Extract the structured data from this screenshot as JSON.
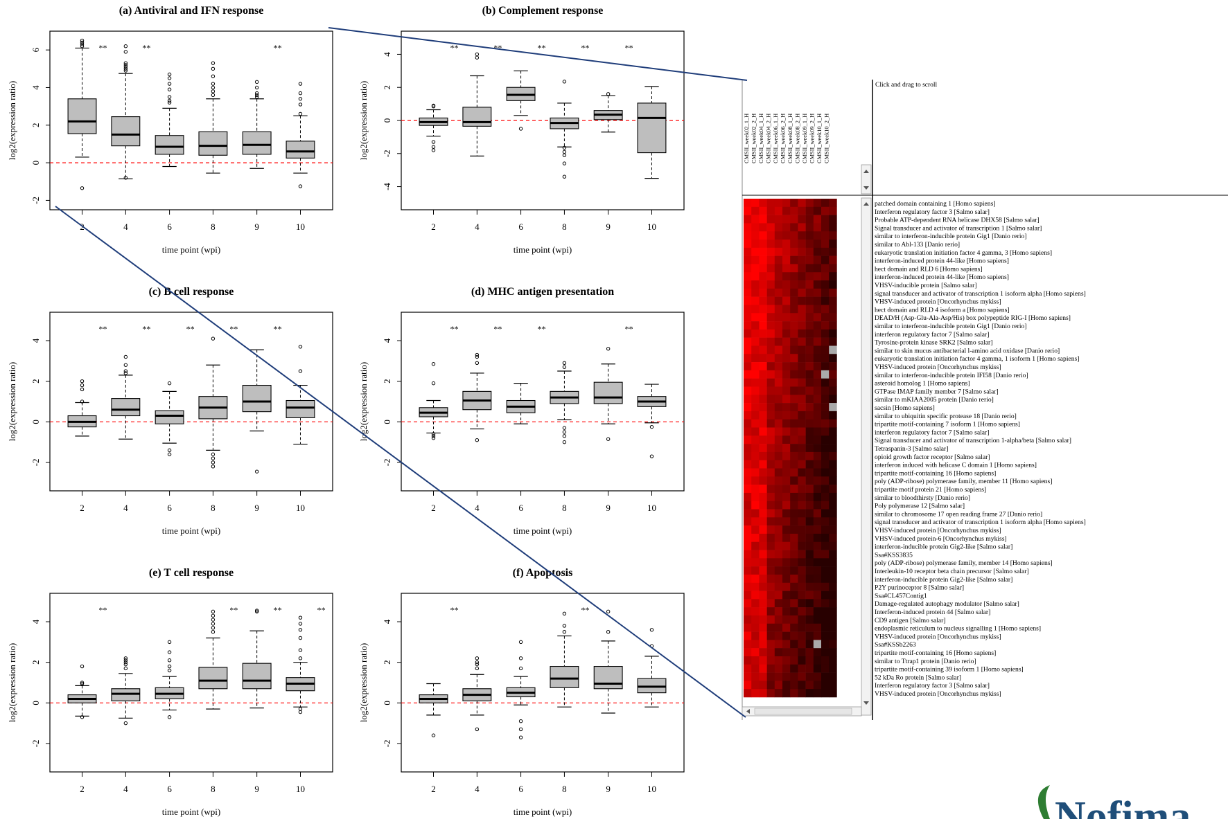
{
  "chart_data": [
    {
      "type": "boxplot",
      "title": "(a) Antiviral and IFN response",
      "xlabel": "time point (wpi)",
      "ylabel": "log2(expression ratio)",
      "categories": [
        "2",
        "4",
        "6",
        "8",
        "9",
        "10"
      ],
      "ylim": [
        -2.5,
        7
      ],
      "yticks": [
        -2,
        0,
        2,
        4,
        6
      ],
      "significance": [
        "**",
        "**",
        "",
        "",
        "**",
        ""
      ],
      "boxes": [
        {
          "min": 0.3,
          "q1": 1.55,
          "median": 2.2,
          "q3": 3.4,
          "max": 6.1,
          "outliers": [
            6.2,
            6.3,
            6.4,
            6.5,
            -1.35
          ]
        },
        {
          "min": -0.85,
          "q1": 0.9,
          "median": 1.5,
          "q3": 2.45,
          "max": 4.75,
          "outliers": [
            4.9,
            5.0,
            5.1,
            5.2,
            5.3,
            5.9,
            6.2,
            -0.8
          ]
        },
        {
          "min": -0.2,
          "q1": 0.45,
          "median": 0.85,
          "q3": 1.45,
          "max": 2.9,
          "outliers": [
            3.2,
            3.3,
            3.5,
            3.9,
            4.2,
            4.5,
            4.7
          ]
        },
        {
          "min": -0.55,
          "q1": 0.4,
          "median": 0.9,
          "q3": 1.65,
          "max": 3.4,
          "outliers": [
            3.6,
            3.8,
            4.0,
            4.2,
            4.6,
            5.0,
            5.3
          ]
        },
        {
          "min": -0.3,
          "q1": 0.45,
          "median": 0.95,
          "q3": 1.65,
          "max": 3.4,
          "outliers": [
            3.5,
            3.6,
            3.7,
            4.0,
            4.3
          ]
        },
        {
          "min": -0.55,
          "q1": 0.25,
          "median": 0.6,
          "q3": 1.15,
          "max": 2.5,
          "outliers": [
            2.6,
            3.1,
            3.4,
            3.7,
            4.2,
            -1.25
          ]
        }
      ]
    },
    {
      "type": "boxplot",
      "title": "(b) Complement response",
      "xlabel": "time point (wpi)",
      "ylabel": "log2(expression ratio)",
      "categories": [
        "2",
        "4",
        "6",
        "8",
        "9",
        "10"
      ],
      "ylim": [
        -5.4,
        5.4
      ],
      "yticks": [
        -4,
        -2,
        0,
        2,
        4
      ],
      "significance": [
        "**",
        "**",
        "**",
        "**",
        "**",
        ""
      ],
      "boxes": [
        {
          "min": -0.95,
          "q1": -0.3,
          "median": -0.1,
          "q3": 0.15,
          "max": 0.65,
          "outliers": [
            0.85,
            0.9,
            -1.3,
            -1.6,
            -1.8
          ]
        },
        {
          "min": -2.15,
          "q1": -0.35,
          "median": -0.1,
          "q3": 0.8,
          "max": 2.7,
          "outliers": [
            3.8,
            4.0
          ]
        },
        {
          "min": 0.3,
          "q1": 1.2,
          "median": 1.55,
          "q3": 2.0,
          "max": 3.0,
          "outliers": [
            -0.5
          ]
        },
        {
          "min": -1.6,
          "q1": -0.5,
          "median": -0.15,
          "q3": 0.15,
          "max": 1.05,
          "outliers": [
            2.35,
            -1.65,
            -1.9,
            -2.1,
            -2.6,
            -3.4
          ]
        },
        {
          "min": -0.7,
          "q1": 0.05,
          "median": 0.35,
          "q3": 0.6,
          "max": 1.5,
          "outliers": [
            1.6
          ]
        },
        {
          "min": -3.5,
          "q1": -1.95,
          "median": 0.15,
          "q3": 1.05,
          "max": 2.05,
          "outliers": []
        }
      ]
    },
    {
      "type": "boxplot",
      "title": "(c) B cell response",
      "xlabel": "time point (wpi)",
      "ylabel": "log2(expression ratio)",
      "categories": [
        "2",
        "4",
        "6",
        "8",
        "9",
        "10"
      ],
      "ylim": [
        -3.4,
        5.4
      ],
      "yticks": [
        -2,
        0,
        2,
        4
      ],
      "significance": [
        "**",
        "**",
        "**",
        "**",
        "**",
        ""
      ],
      "boxes": [
        {
          "min": -0.7,
          "q1": -0.25,
          "median": 0.0,
          "q3": 0.3,
          "max": 0.95,
          "outliers": [
            1.0,
            1.6,
            1.8,
            2.0
          ]
        },
        {
          "min": -0.85,
          "q1": 0.3,
          "median": 0.6,
          "q3": 1.15,
          "max": 2.3,
          "outliers": [
            2.4,
            2.5,
            2.8,
            3.2
          ]
        },
        {
          "min": -1.05,
          "q1": -0.1,
          "median": 0.3,
          "q3": 0.55,
          "max": 1.5,
          "outliers": [
            1.9,
            -1.4,
            -1.6
          ]
        },
        {
          "min": -1.4,
          "q1": 0.15,
          "median": 0.7,
          "q3": 1.25,
          "max": 2.8,
          "outliers": [
            4.1,
            -1.6,
            -1.8,
            -2.0,
            -2.2
          ]
        },
        {
          "min": -0.45,
          "q1": 0.5,
          "median": 1.0,
          "q3": 1.8,
          "max": 3.55,
          "outliers": [
            -2.45
          ]
        },
        {
          "min": -1.1,
          "q1": 0.2,
          "median": 0.7,
          "q3": 1.05,
          "max": 1.8,
          "outliers": [
            2.5,
            3.7
          ]
        }
      ]
    },
    {
      "type": "boxplot",
      "title": "(d) MHC antigen presentation",
      "xlabel": "time point (wpi)",
      "ylabel": "log2(expression ratio)",
      "categories": [
        "2",
        "4",
        "6",
        "8",
        "9",
        "10"
      ],
      "ylim": [
        -3.4,
        5.4
      ],
      "yticks": [
        -2,
        0,
        2,
        4
      ],
      "significance": [
        "**",
        "**",
        "**",
        "",
        "**",
        ""
      ],
      "boxes": [
        {
          "min": -0.55,
          "q1": 0.25,
          "median": 0.45,
          "q3": 0.7,
          "max": 1.05,
          "outliers": [
            1.9,
            2.85,
            -0.6,
            -0.7,
            -0.8
          ]
        },
        {
          "min": -0.35,
          "q1": 0.6,
          "median": 1.05,
          "q3": 1.5,
          "max": 2.4,
          "outliers": [
            2.9,
            3.2,
            3.3,
            -0.9
          ]
        },
        {
          "min": -0.1,
          "q1": 0.45,
          "median": 0.75,
          "q3": 1.05,
          "max": 1.9,
          "outliers": []
        },
        {
          "min": 0.1,
          "q1": 0.9,
          "median": 1.2,
          "q3": 1.5,
          "max": 2.5,
          "outliers": [
            2.7,
            2.9,
            -0.3,
            -0.5,
            -0.7,
            -1.0
          ]
        },
        {
          "min": -0.1,
          "q1": 0.9,
          "median": 1.2,
          "q3": 1.95,
          "max": 2.85,
          "outliers": [
            3.6,
            -0.85
          ]
        },
        {
          "min": -0.05,
          "q1": 0.75,
          "median": 1.0,
          "q3": 1.25,
          "max": 1.85,
          "outliers": [
            -0.25,
            -1.7
          ]
        }
      ]
    },
    {
      "type": "boxplot",
      "title": "(e) T cell response",
      "xlabel": "time point (wpi)",
      "ylabel": "log2(expression ratio)",
      "categories": [
        "2",
        "4",
        "6",
        "8",
        "9",
        "10"
      ],
      "ylim": [
        -3.4,
        5.4
      ],
      "yticks": [
        -2,
        0,
        2,
        4
      ],
      "significance": [
        "**",
        "",
        "",
        "**",
        "**",
        "**"
      ],
      "boxes": [
        {
          "min": -0.65,
          "q1": 0.0,
          "median": 0.2,
          "q3": 0.4,
          "max": 0.85,
          "outliers": [
            0.95,
            1.0,
            1.8,
            -0.7
          ]
        },
        {
          "min": -0.75,
          "q1": 0.1,
          "median": 0.45,
          "q3": 0.7,
          "max": 1.45,
          "outliers": [
            1.7,
            1.9,
            2.0,
            2.1,
            2.2,
            -1.0
          ]
        },
        {
          "min": -0.35,
          "q1": 0.2,
          "median": 0.45,
          "q3": 0.75,
          "max": 1.3,
          "outliers": [
            1.6,
            1.8,
            2.1,
            2.5,
            3.0,
            -0.7
          ]
        },
        {
          "min": -0.3,
          "q1": 0.7,
          "median": 1.1,
          "q3": 1.75,
          "max": 3.2,
          "outliers": [
            3.5,
            3.7,
            3.9,
            4.1,
            4.3,
            4.5
          ]
        },
        {
          "min": -0.25,
          "q1": 0.7,
          "median": 1.1,
          "q3": 1.95,
          "max": 3.55,
          "outliers": [
            4.5,
            4.55
          ]
        },
        {
          "min": -0.2,
          "q1": 0.6,
          "median": 0.95,
          "q3": 1.25,
          "max": 2.0,
          "outliers": [
            2.2,
            2.6,
            3.2,
            3.6,
            3.9,
            4.2,
            -0.3,
            -0.45
          ]
        }
      ]
    },
    {
      "type": "boxplot",
      "title": "(f) Apoptosis",
      "xlabel": "time point (wpi)",
      "ylabel": "log2(expression ratio)",
      "categories": [
        "2",
        "4",
        "6",
        "8",
        "9",
        "10"
      ],
      "ylim": [
        -3.4,
        5.4
      ],
      "yticks": [
        -2,
        0,
        2,
        4
      ],
      "significance": [
        "**",
        "",
        "",
        "**",
        "",
        ""
      ],
      "boxes": [
        {
          "min": -0.6,
          "q1": 0.0,
          "median": 0.2,
          "q3": 0.4,
          "max": 0.95,
          "outliers": [
            -1.6
          ]
        },
        {
          "min": -0.6,
          "q1": 0.1,
          "median": 0.4,
          "q3": 0.7,
          "max": 1.4,
          "outliers": [
            1.7,
            1.9,
            2.0,
            2.2,
            -1.3
          ]
        },
        {
          "min": -0.1,
          "q1": 0.3,
          "median": 0.5,
          "q3": 0.75,
          "max": 1.3,
          "outliers": [
            1.7,
            2.2,
            3.0,
            -0.9,
            -1.3,
            -1.7
          ]
        },
        {
          "min": -0.2,
          "q1": 0.75,
          "median": 1.2,
          "q3": 1.8,
          "max": 3.3,
          "outliers": [
            3.5,
            3.8,
            4.4
          ]
        },
        {
          "min": -0.5,
          "q1": 0.7,
          "median": 0.95,
          "q3": 1.8,
          "max": 3.05,
          "outliers": [
            3.5,
            4.5
          ]
        },
        {
          "min": -0.2,
          "q1": 0.5,
          "median": 0.8,
          "q3": 1.2,
          "max": 2.3,
          "outliers": [
            2.8,
            3.6
          ]
        }
      ]
    },
    {
      "type": "heatmap",
      "columns": [
        "CMSII_week02_1_H",
        "CMSII_week02_2_H",
        "CMSII_week04_1_H",
        "CMSII_week04_2_H",
        "CMSII_week06_1_H",
        "CMSII_week06_2_H",
        "CMSII_week08_1_H",
        "CMSII_week08_2_H",
        "CMSII_week09_1_H",
        "CMSII_week09_2_H",
        "CMSII_week10_1_H",
        "CMSII_week10_2_H"
      ],
      "scroll_hint": "Click and drag to scroll",
      "rows": [
        "patched domain containing 1 [Homo sapiens]",
        "Interferon regulatory factor 3 [Salmo salar]",
        "Probable ATP-dependent RNA helicase DHX58 [Salmo salar]",
        "Signal transducer and activator of transcription 1 [Salmo salar]",
        "similar to interferon-inducible protein Gig1 [Danio rerio]",
        "similar to Abl-133 [Danio rerio]",
        "eukaryotic translation initiation factor 4 gamma, 3 [Homo sapiens]",
        "interferon-induced protein 44-like [Homo sapiens]",
        "hect domain and RLD 6 [Homo sapiens]",
        "interferon-induced protein 44-like [Homo sapiens]",
        "VHSV-inducible protein [Salmo salar]",
        "signal transducer and activator of transcription 1 isoform alpha [Homo sapiens]",
        "VHSV-induced protein [Oncorhynchus mykiss]",
        "hect domain and RLD 4 isoform a [Homo sapiens]",
        "DEAD/H (Asp-Glu-Ala-Asp/His) box polypeptide RIG-I [Homo sapiens]",
        "similar to interferon-inducible protein Gig1 [Danio rerio]",
        "interferon regulatory factor 7 [Salmo salar]",
        "Tyrosine-protein kinase SRK2 [Salmo salar]",
        "similar to skin mucus antibacterial l-amino acid oxidase [Danio rerio]",
        "eukaryotic translation initiation factor 4 gamma, 1 isoform 1 [Homo sapiens]",
        "VHSV-induced protein [Oncorhynchus mykiss]",
        "similar to interferon-inducible protein IFI58 [Danio rerio]",
        "asteroid homolog 1 [Homo sapiens]",
        "GTPase IMAP family member 7 [Salmo salar]",
        "similar to mKIAA2005 protein [Danio rerio]",
        "sacsin [Homo sapiens]",
        "similar to ubiquitin specific protease 18 [Danio rerio]",
        "tripartite motif-containing 7 isoform 1 [Homo sapiens]",
        "interferon regulatory factor 7 [Salmo salar]",
        "Signal transducer and activator of transcription 1-alpha/beta [Salmo salar]",
        "Tetraspanin-3 [Salmo salar]",
        "opioid growth factor receptor [Salmo salar]",
        "interferon induced with helicase C domain 1 [Homo sapiens]",
        "tripartite motif-containing 16 [Homo sapiens]",
        "poly (ADP-ribose) polymerase family, member 11 [Homo sapiens]",
        "tripartite motif protein 21 [Homo sapiens]",
        "similar to bloodthirsty [Danio rerio]",
        "Poly polymerase 12 [Salmo salar]",
        "similar to chromosome 17 open reading frame 27 [Danio rerio]",
        "signal transducer and activator of transcription 1 isoform alpha [Homo sapiens]",
        "VHSV-induced protein [Oncorhynchus mykiss]",
        "VHSV-induced protein-6 [Oncorhynchus mykiss]",
        "interferon-inducible protein Gig2-like [Salmo salar]",
        "Ssa#KSS3835",
        "poly (ADP-ribose) polymerase family, member 14 [Homo sapiens]",
        "Interleukin-10 receptor beta chain precursor [Salmo salar]",
        "interferon-inducible protein Gig2-like [Salmo salar]",
        "P2Y purinoceptor 8 [Salmo salar]",
        "Ssa#CL457Contig1",
        "Damage-regulated autophagy modulator [Salmo salar]",
        "Interferon-induced protein 44 [Salmo salar]",
        "CD9 antigen [Salmo salar]",
        "endoplasmic reticulum to nucleus signalling 1 [Homo sapiens]",
        "VHSV-induced protein [Oncorhynchus mykiss]",
        "Ssa#KSSb2263",
        "tripartite motif-containing 16 [Homo sapiens]",
        "similar to Ttrap1 protein [Danio rerio]",
        "tripartite motif-containing 39 isoform 1 [Homo sapiens]",
        "52 kDa Ro protein [Salmo salar]",
        "Interferon regulatory factor 3 [Salmo salar]",
        "VHSV-induced protein [Oncorhynchus mykiss]"
      ]
    }
  ],
  "logo": "Nofima",
  "colors": {
    "box_fill": "#bebebe",
    "zero_line": "#ff0000",
    "connector": "#1f3d7a",
    "heat_high": "#ff0000",
    "heat_low": "#000000"
  }
}
